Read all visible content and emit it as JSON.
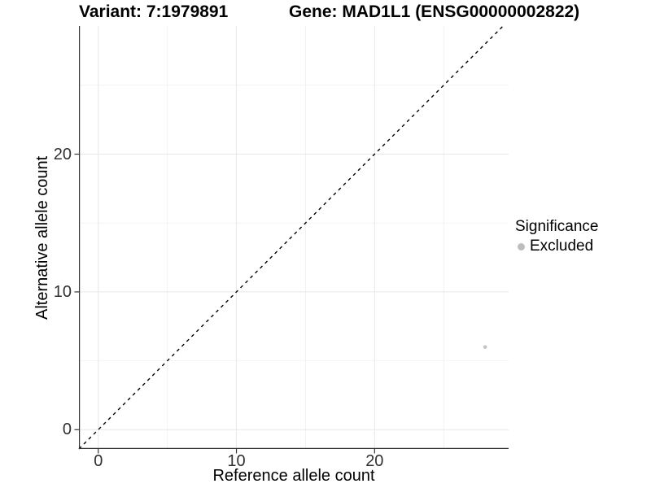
{
  "titles": {
    "variant": "Variant: 7:1979891",
    "gene": "Gene: MAD1L1 (ENSG00000002822)"
  },
  "axes": {
    "x": {
      "label": "Reference allele count"
    },
    "y": {
      "label": "Alternative allele count"
    }
  },
  "legend": {
    "title": "Significance",
    "items": [
      {
        "label": "Excluded",
        "color": "#bdbdbd",
        "marker": "dot-icon"
      }
    ]
  },
  "theme": {
    "background": "#ffffff",
    "grid_major": "#e7e7e7",
    "grid_minor": "#f0f0f0",
    "axis_line": "#333333",
    "tick_label_color": "#303030",
    "reference_line_color": "#000000",
    "point_color": "#c4c4c4"
  },
  "chart_data": {
    "type": "scatter",
    "title": "Variant: 7:1979891 / Gene: MAD1L1 (ENSG00000002822)",
    "xlabel": "Reference allele count",
    "ylabel": "Alternative allele count",
    "xlim": [
      -1.4,
      29.7
    ],
    "ylim": [
      -1.4,
      29.3
    ],
    "x_major_ticks": [
      0,
      10,
      20
    ],
    "x_minor_ticks": [
      5,
      15,
      25
    ],
    "y_major_ticks": [
      0,
      10,
      20
    ],
    "y_minor_ticks": [
      5,
      15,
      25
    ],
    "grid": true,
    "legend_position": "right",
    "reference_line": {
      "kind": "identity y=x",
      "style": "dashed",
      "color": "#000000"
    },
    "series": [
      {
        "name": "Excluded",
        "color": "#c4c4c4",
        "points": [
          {
            "x": 28,
            "y": 6
          }
        ]
      }
    ]
  }
}
